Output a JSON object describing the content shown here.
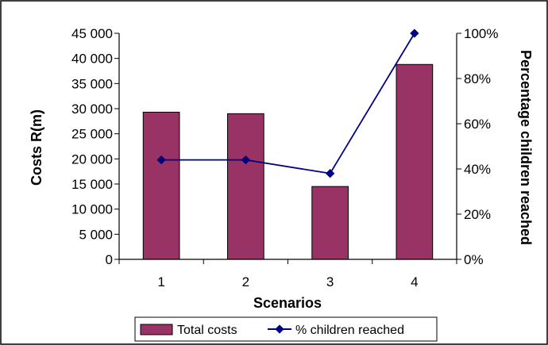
{
  "chart_data": {
    "type": "bar",
    "categories": [
      "1",
      "2",
      "3",
      "4"
    ],
    "xlabel": "Scenarios",
    "ylabel_left": "Costs R(m)",
    "ylabel_right": "Percentage children reached",
    "left_axis": {
      "min": 0,
      "max": 45000,
      "ticks": [
        0,
        5000,
        10000,
        15000,
        20000,
        25000,
        30000,
        35000,
        40000,
        45000
      ],
      "tick_labels": [
        "0",
        "5 000",
        "10 000",
        "15 000",
        "20 000",
        "25 000",
        "30 000",
        "35 000",
        "40 000",
        "45 000"
      ]
    },
    "right_axis": {
      "min": 0,
      "max": 100,
      "ticks": [
        0,
        20,
        40,
        60,
        80,
        100
      ],
      "tick_labels": [
        "0%",
        "20%",
        "40%",
        "60%",
        "80%",
        "100%"
      ]
    },
    "series": [
      {
        "name": "Total costs",
        "type": "bar",
        "axis": "left",
        "values": [
          29300,
          29000,
          14500,
          38800
        ],
        "color": "#993366"
      },
      {
        "name": "% children reached",
        "type": "line",
        "axis": "right",
        "values": [
          44,
          44,
          38,
          100
        ],
        "color": "#000080"
      }
    ],
    "legend_position": "bottom",
    "grid": false
  }
}
